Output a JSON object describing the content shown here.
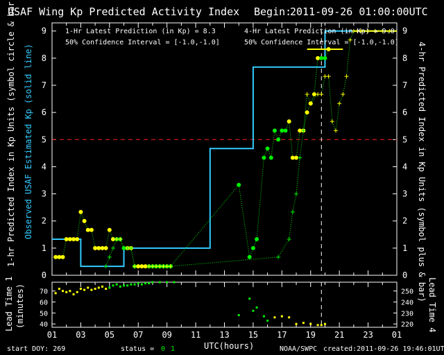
{
  "header": {
    "title": "USAF Wing Kp Predicted Activity Index",
    "begin_label": "Begin:",
    "begin_value": "2011-09-26 01:00:00UTC"
  },
  "legend": {
    "one_hr_latest": "1-Hr Latest Prediction (in Kp) = 8.3",
    "one_hr_ci": "50% Confidence Interval  = [-1.0,-1.0]",
    "four_hr_latest": "4-Hr Latest Prediction (in Kp) = 9.0",
    "four_hr_ci": "50% Confidence Interval  = [-1.0,-1.0]"
  },
  "axes": {
    "left_ylabel": "1-hr Predicted Index in Kp Units (symbol circle & bar)",
    "left_ylabel_cyan": "Observed USAF Estimated Kp (solid line)",
    "right_ylabel": "4-hr Predicted Index in Kp Units (symbol plus & bar)",
    "lead_left_ylabel_1": "Lead Time 1",
    "lead_left_ylabel_2": "(minutes)",
    "lead_right_ylabel": "Lead Time 4",
    "xlabel": "UTC(hours)"
  },
  "footer": {
    "start_doy": "start DOY:  269",
    "status_label": "status =",
    "status_0": "0",
    "status_1": "1",
    "source": "NOAA/SWPC",
    "created": "created:2011-09-26 19:46:01UTC"
  },
  "colors": {
    "cyan": "#33ccff",
    "yellow": "#ffff00",
    "green": "#00ee00",
    "red": "#ff2020",
    "white": "#ffffff"
  },
  "chart_data": {
    "type": "scatter",
    "title": "USAF Wing Kp Predicted Activity Index",
    "xlabel": "UTC(hours)",
    "ylabel": "Kp",
    "xlim": [
      1,
      25
    ],
    "ylim": [
      0,
      9.3
    ],
    "x_tick_labels": [
      "01",
      "03",
      "05",
      "07",
      "09",
      "11",
      "13",
      "15",
      "17",
      "19",
      "21",
      "23",
      "01"
    ],
    "x_tick_hours": [
      1,
      3,
      5,
      7,
      9,
      11,
      13,
      15,
      17,
      19,
      21,
      23,
      25
    ],
    "y_ticks": [
      0,
      1,
      2,
      3,
      4,
      5,
      6,
      7,
      8,
      9
    ],
    "threshold_kp": 5,
    "current_time_hour": 19.75,
    "observed_kp_steps": [
      {
        "start": 1,
        "end": 3,
        "kp": 1.33
      },
      {
        "start": 3,
        "end": 4.75,
        "kp": 0.33
      },
      {
        "start": 4.75,
        "end": 6,
        "kp": 0.33
      },
      {
        "start": 6,
        "end": 12,
        "kp": 1.0
      },
      {
        "start": 12,
        "end": 15,
        "kp": 4.67
      },
      {
        "start": 15,
        "end": 20,
        "kp": 7.67
      },
      {
        "start": 20,
        "end": 25,
        "kp": 9.0
      }
    ],
    "one_hr_predictions": {
      "x": [
        1.25,
        1.5,
        1.75,
        2.0,
        2.25,
        2.5,
        2.75,
        3.0,
        3.25,
        3.5,
        3.75,
        4.0,
        4.25,
        4.5,
        4.75,
        5.0,
        5.25,
        5.5,
        5.75,
        6.0,
        6.25,
        6.5,
        6.75,
        7.0,
        7.25,
        7.5,
        7.75,
        8.0,
        8.25,
        8.5,
        8.75,
        9.0,
        9.25,
        14.0,
        14.75,
        15.0,
        15.25,
        15.75,
        16.0,
        16.25,
        16.5,
        16.75,
        17.0,
        17.25,
        17.5,
        17.75,
        18.0,
        18.25,
        18.5,
        18.75,
        19.0,
        19.25,
        19.5,
        19.75,
        20.0,
        20.25
      ],
      "kp": [
        0.67,
        0.67,
        0.67,
        1.33,
        1.33,
        1.33,
        1.33,
        2.33,
        2.0,
        1.67,
        1.67,
        1.0,
        1.0,
        1.0,
        1.0,
        1.67,
        1.33,
        1.33,
        1.33,
        1.0,
        1.0,
        1.0,
        0.33,
        0.33,
        0.33,
        0.33,
        0.33,
        0.33,
        0.33,
        0.33,
        0.33,
        0.33,
        0.33,
        3.33,
        0.67,
        1.0,
        1.33,
        4.33,
        4.67,
        4.33,
        5.33,
        5.0,
        5.33,
        5.33,
        5.67,
        4.33,
        4.33,
        5.33,
        5.33,
        6.0,
        6.33,
        6.67,
        8.0,
        8.0,
        8.0,
        8.33
      ],
      "color_by_point": [
        "y",
        "y",
        "y",
        "y",
        "y",
        "y",
        "y",
        "y",
        "y",
        "y",
        "y",
        "y",
        "y",
        "y",
        "y",
        "y",
        "y",
        "g",
        "g",
        "g",
        "y",
        "y",
        "g",
        "y",
        "y",
        "y",
        "g",
        "g",
        "g",
        "g",
        "g",
        "g",
        "g",
        "g",
        "g",
        "g",
        "g",
        "g",
        "g",
        "g",
        "g",
        "g",
        "g",
        "g",
        "y",
        "y",
        "y",
        "y",
        "y",
        "y",
        "y",
        "y",
        "y",
        "g",
        "g",
        "y"
      ]
    },
    "four_hr_predictions": {
      "x": [
        4.75,
        5.0,
        5.25,
        5.5,
        5.75,
        6.0,
        6.25,
        6.5,
        6.75,
        7.0,
        7.25,
        7.5,
        7.75,
        8.0,
        8.25,
        8.5,
        8.75,
        9.0,
        9.25,
        16.75,
        17.5,
        17.75,
        18.0,
        18.25,
        18.5,
        18.75,
        19.0,
        19.5,
        19.75,
        20.0,
        20.25,
        20.5,
        20.75,
        21.0,
        21.25,
        21.5,
        21.75,
        22.0,
        22.25,
        22.5,
        23.0,
        23.5,
        24.0,
        24.5
      ],
      "kp": [
        0.33,
        0.67,
        1.0,
        1.33,
        1.33,
        1.0,
        1.0,
        1.0,
        0.33,
        0.33,
        0.33,
        0.33,
        0.33,
        0.33,
        0.33,
        0.33,
        0.33,
        0.33,
        0.33,
        0.67,
        1.33,
        2.33,
        3.0,
        4.33,
        5.33,
        6.67,
        6.33,
        6.67,
        6.67,
        7.33,
        7.33,
        5.67,
        5.33,
        6.33,
        6.67,
        7.33,
        8.67,
        9.0,
        9.0,
        9.0,
        9.0,
        9.0,
        9.0,
        9.0
      ],
      "color_by_point": [
        "g",
        "g",
        "g",
        "y",
        "y",
        "g",
        "g",
        "g",
        "y",
        "y",
        "y",
        "y",
        "y",
        "y",
        "y",
        "y",
        "y",
        "y",
        "y",
        "g",
        "g",
        "g",
        "g",
        "g",
        "g",
        "y",
        "y",
        "y",
        "y",
        "y",
        "y",
        "y",
        "y",
        "y",
        "y",
        "y",
        "y",
        "y",
        "y",
        "y",
        "y",
        "y",
        "y",
        "y"
      ]
    },
    "latest_1hr_bar": {
      "start": 18.75,
      "end": 21.25,
      "kp": 8.33
    },
    "latest_4hr_bar": {
      "start": 22.0,
      "end": 25.0,
      "kp": 9.0
    },
    "lead_time_panel": {
      "left_ylim": [
        37,
        78
      ],
      "left_ticks": [
        40,
        50,
        60,
        70
      ],
      "right_ticks": [
        220,
        230,
        240,
        250
      ],
      "points_1hr": {
        "x": [
          1.25,
          1.5,
          1.75,
          2.0,
          2.25,
          2.5,
          2.75,
          3.0,
          3.25,
          3.5,
          3.75,
          4.0,
          4.25,
          4.5,
          4.75,
          5.0,
          5.25,
          5.5,
          5.75,
          6.0,
          6.25,
          6.5,
          6.75,
          7.0,
          7.25,
          7.5,
          7.75,
          8.0,
          8.5,
          9.0,
          9.5,
          14.0,
          14.75,
          15.0,
          15.25,
          15.75,
          16.0,
          16.5,
          17.0,
          17.5,
          18.0,
          18.5,
          19.0,
          19.5,
          19.75,
          20.0
        ],
        "min": [
          68,
          72,
          70,
          69,
          70,
          67,
          69,
          72,
          71,
          73,
          71,
          72,
          73,
          74,
          72,
          73,
          75,
          76,
          74,
          75,
          75,
          76,
          76,
          77,
          76,
          77,
          77,
          78,
          78,
          78,
          78,
          48,
          63,
          52,
          55,
          47,
          43,
          46,
          47,
          46,
          40,
          41,
          40,
          39,
          39,
          40
        ],
        "color_by_point": [
          "y",
          "y",
          "y",
          "y",
          "y",
          "y",
          "y",
          "y",
          "y",
          "y",
          "y",
          "y",
          "y",
          "y",
          "y",
          "g",
          "g",
          "g",
          "g",
          "g",
          "g",
          "g",
          "g",
          "g",
          "g",
          "g",
          "g",
          "g",
          "g",
          "g",
          "g",
          "g",
          "g",
          "g",
          "g",
          "g",
          "g",
          "y",
          "y",
          "y",
          "y",
          "y",
          "y",
          "y",
          "y",
          "y"
        ]
      }
    }
  }
}
